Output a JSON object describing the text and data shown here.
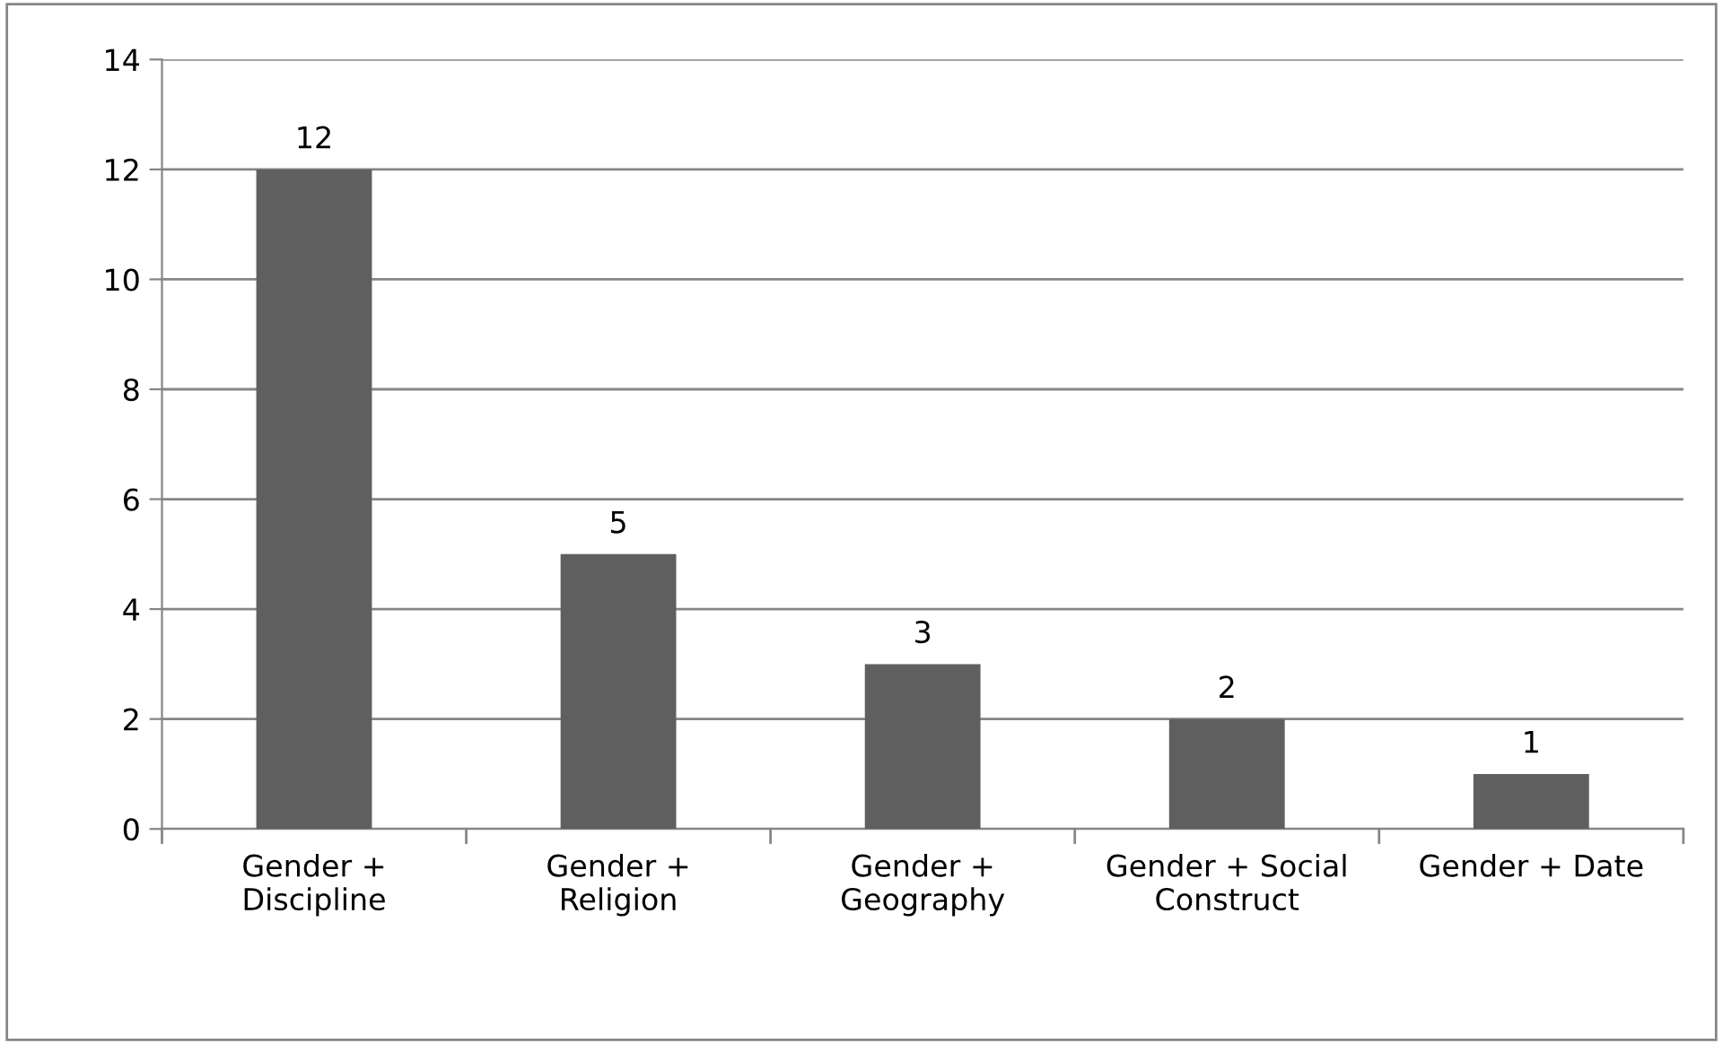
{
  "chart_data": {
    "type": "bar",
    "categories": [
      "Gender +\nDiscipline",
      "Gender +\nReligion",
      "Gender +\nGeography",
      "Gender + Social\nConstruct",
      "Gender + Date"
    ],
    "values": [
      12,
      5,
      3,
      2,
      1
    ],
    "color": "#5f5f5f",
    "ylim": [
      0,
      14
    ],
    "yticks": [
      0,
      2,
      4,
      6,
      8,
      10,
      12,
      14
    ],
    "grid": "y",
    "data_labels": true,
    "legend": false
  }
}
